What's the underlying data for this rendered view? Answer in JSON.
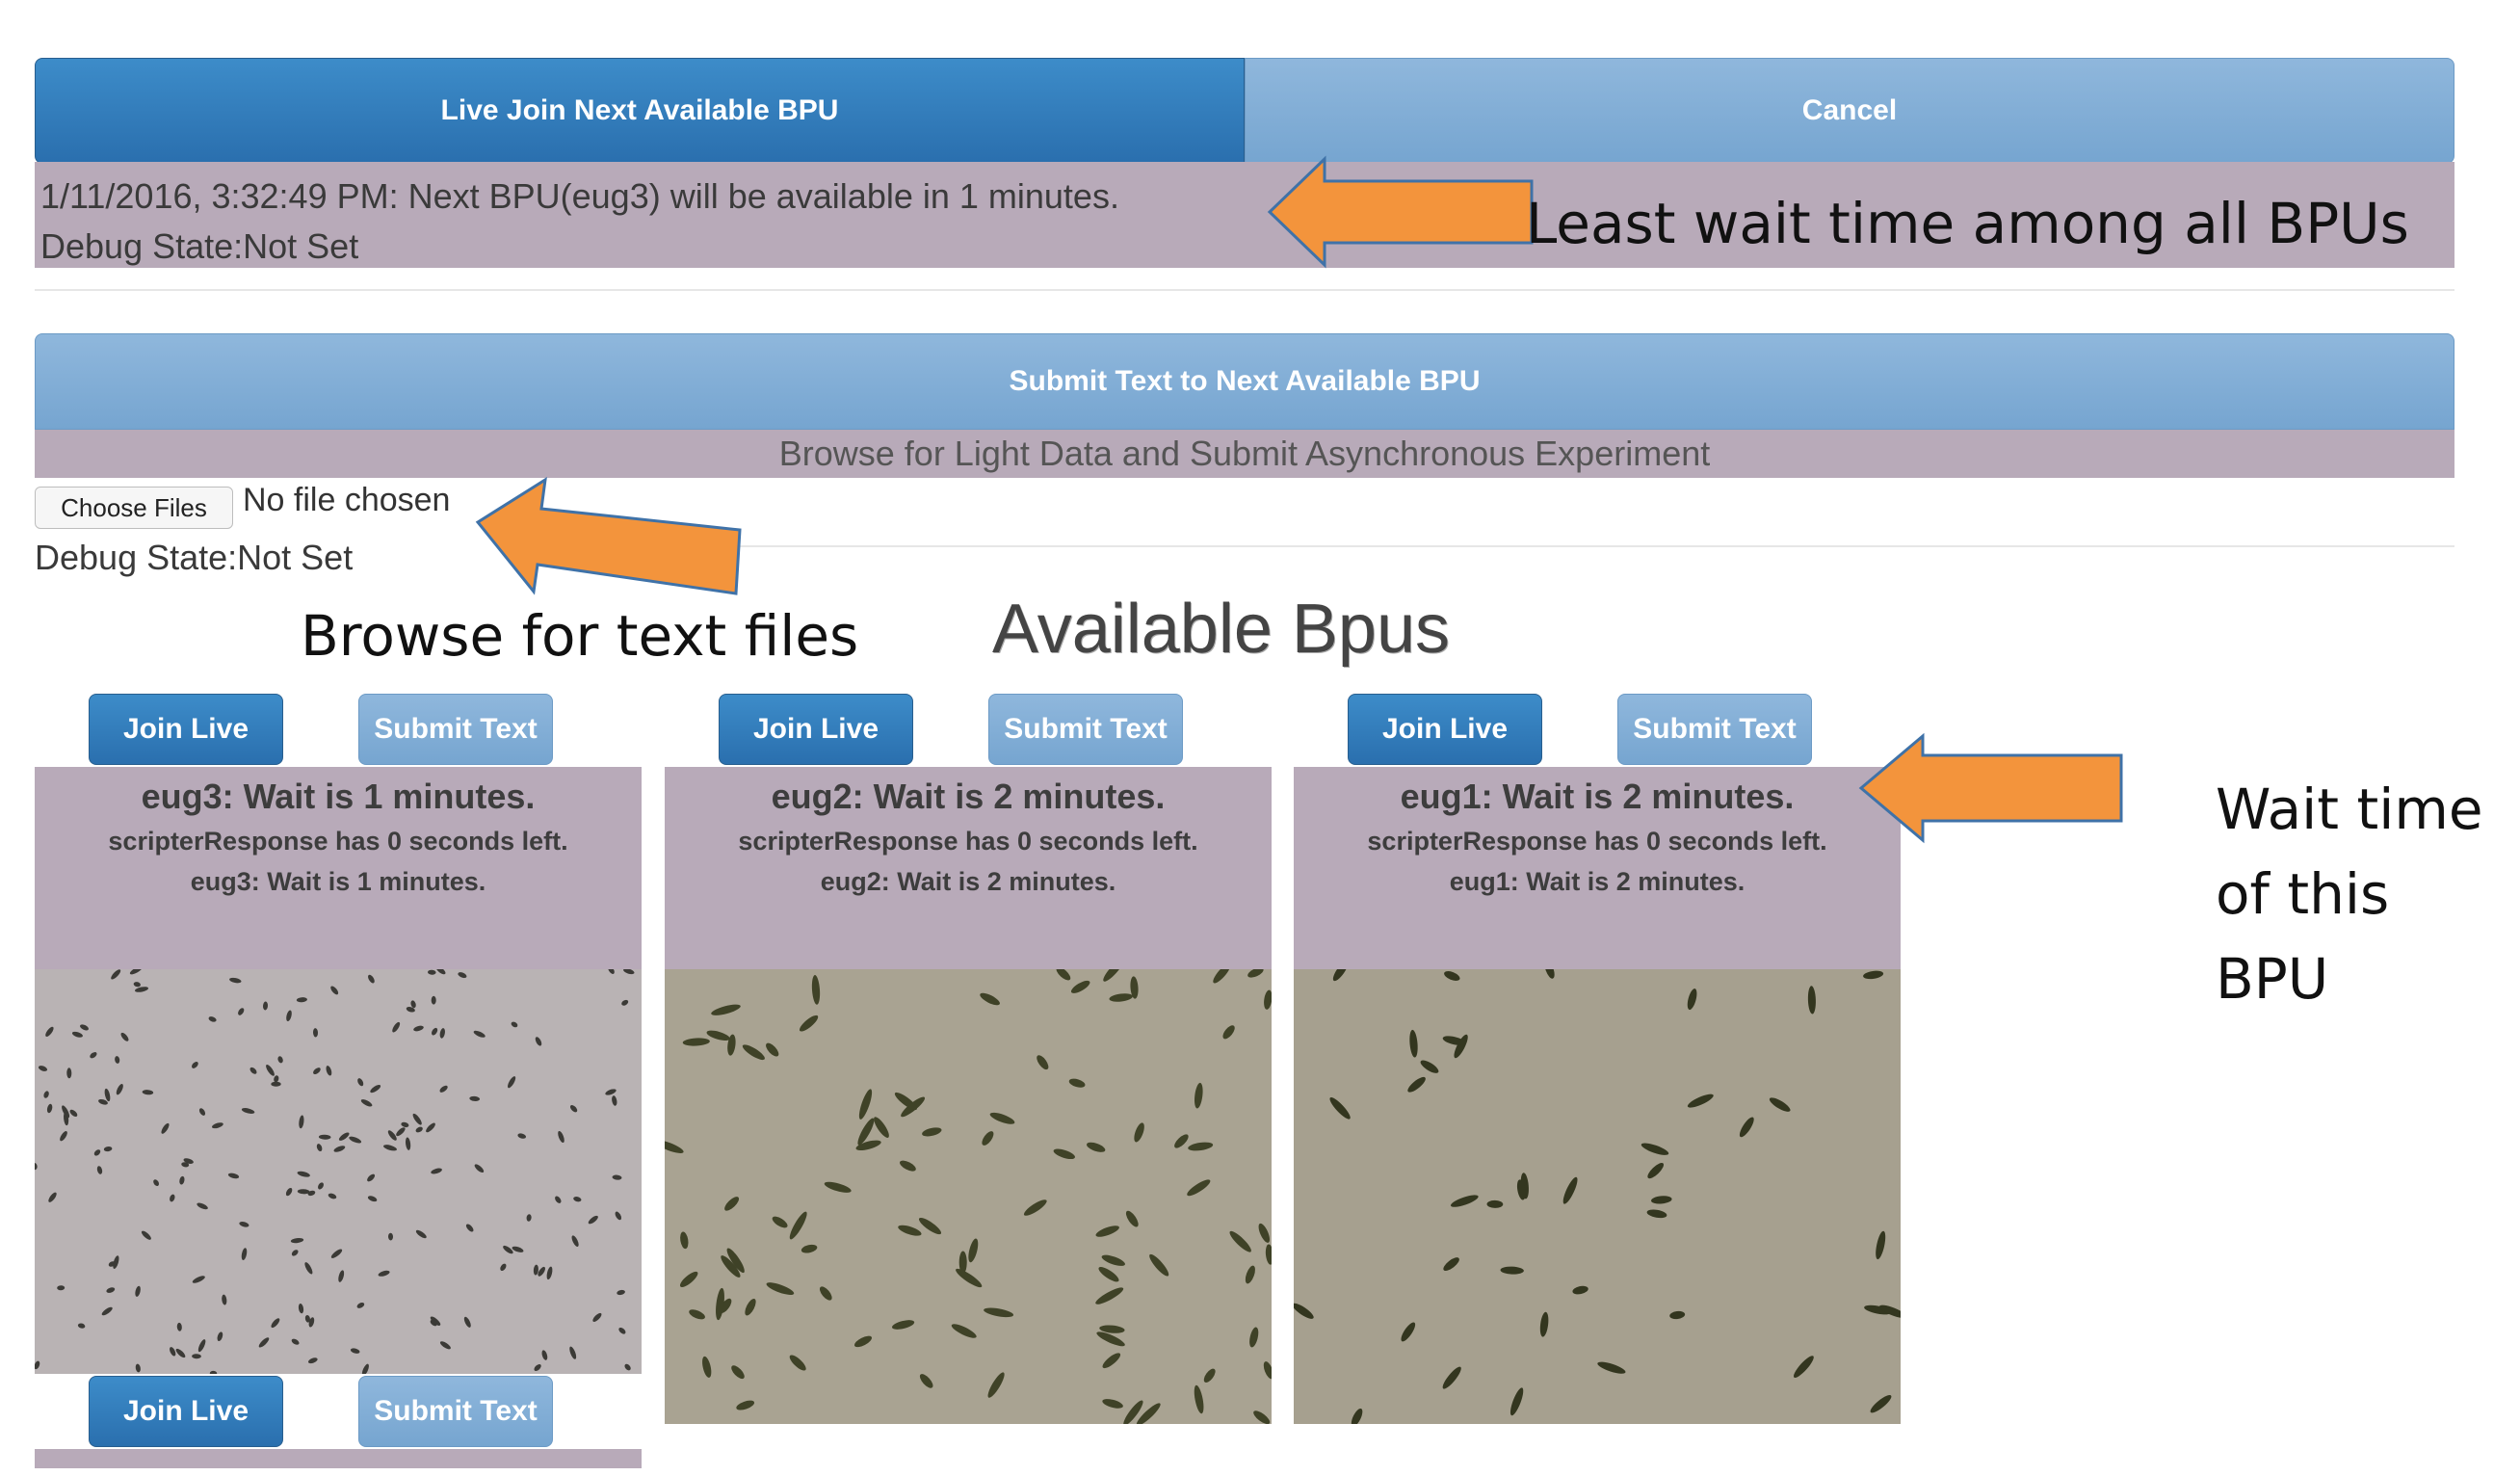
{
  "top_bar": {
    "join_label": "Live Join Next Available BPU",
    "cancel_label": "Cancel",
    "status_message": "1/11/2016, 3:32:49 PM: Next BPU(eug3) will be available in 1 minutes.",
    "debug_state": "Debug State:Not Set"
  },
  "async_panel": {
    "submit_label": "Submit Text to Next Available BPU",
    "browse_label": "Browse for Light Data and Submit Asynchronous Experiment",
    "choose_files_label": "Choose Files",
    "no_file_text": "No file chosen",
    "debug_state": "Debug State:Not Set"
  },
  "section_title": "Available Bpus",
  "cards": [
    {
      "join_label": "Join Live",
      "submit_label": "Submit Text",
      "title": "eug3: Wait is 1 minutes.",
      "line1": "scripterResponse has 0 seconds left.",
      "line2": "eug3: Wait is 1 minutes."
    },
    {
      "join_label": "Join Live",
      "submit_label": "Submit Text",
      "title": "eug2: Wait is 2 minutes.",
      "line1": "scripterResponse has 0 seconds left.",
      "line2": "eug2: Wait is 2 minutes."
    },
    {
      "join_label": "Join Live",
      "submit_label": "Submit Text",
      "title": "eug1: Wait is 2 minutes.",
      "line1": "scripterResponse has 0 seconds left.",
      "line2": "eug1: Wait is 2 minutes."
    }
  ],
  "second_row": {
    "join_label": "Join Live",
    "submit_label": "Submit Text"
  },
  "annotations": {
    "least_wait": "Least wait time among all BPUs",
    "browse_text": "Browse for text files",
    "wait_time_line1": "Wait time",
    "wait_time_line2": "of this",
    "wait_time_line3": "BPU"
  },
  "colors": {
    "primary_blue": "#2f7bbd",
    "light_blue": "#80add6",
    "info_bg": "#b8aab9",
    "arrow_orange": "#f3943c"
  }
}
